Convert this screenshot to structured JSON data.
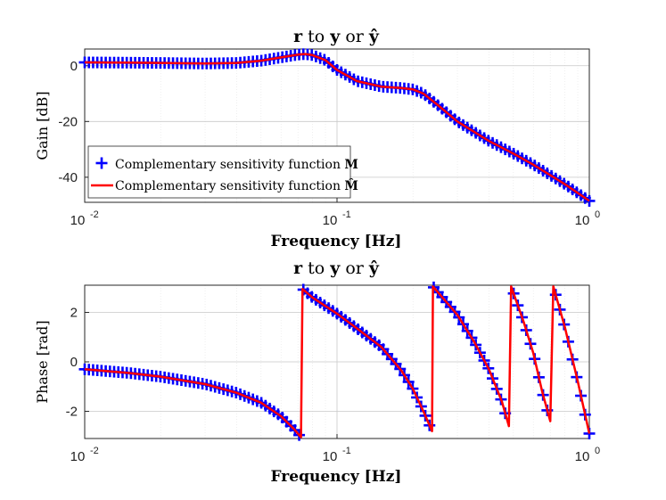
{
  "colors": {
    "marker": "#0000ff",
    "line": "#ff0000",
    "axis": "#262626"
  },
  "chart_data": [
    {
      "type": "line",
      "title_parts": [
        "r",
        " to ",
        "y",
        " or ",
        "ŷ"
      ],
      "xlabel_parts": [
        "Frequency",
        " ",
        "[Hz]"
      ],
      "ylabel": "Gain [dB]",
      "xscale": "log",
      "xlim": [
        0.01,
        1
      ],
      "ylim": [
        -49,
        6
      ],
      "xticks": [
        {
          "value": 0.01,
          "base": "10",
          "exp": "-2"
        },
        {
          "value": 0.1,
          "base": "10",
          "exp": "-1"
        },
        {
          "value": 1,
          "base": "10",
          "exp": "0"
        }
      ],
      "yticks": [
        {
          "value": 0,
          "label": "0"
        },
        {
          "value": -20,
          "label": "-20"
        },
        {
          "value": -40,
          "label": "-40"
        }
      ],
      "grid": true,
      "legend": {
        "position": "bottom-left",
        "entries": [
          {
            "label": "Complementary sensitivity function ",
            "symbol": "M",
            "marker": "plus",
            "color": "#0000ff"
          },
          {
            "label": "Complementary sensitivity function ",
            "symbol": "M̂",
            "marker": "line",
            "color": "#ff0000"
          }
        ]
      },
      "series": [
        {
          "name": "Complementary sensitivity function M",
          "style": "plus",
          "x": [
            0.01,
            0.015,
            0.02,
            0.03,
            0.04,
            0.05,
            0.06,
            0.07,
            0.075,
            0.08,
            0.09,
            0.1,
            0.12,
            0.15,
            0.18,
            0.2,
            0.22,
            0.25,
            0.3,
            0.4,
            0.5,
            0.6,
            0.8,
            1.0
          ],
          "y": [
            1.2,
            1.1,
            1.0,
            0.8,
            1.0,
            1.8,
            3.0,
            4.0,
            4.2,
            3.8,
            2.0,
            -1.5,
            -5.5,
            -7.5,
            -8.0,
            -8.5,
            -10.0,
            -14.0,
            -20.0,
            -27.0,
            -31.5,
            -35.5,
            -42.5,
            -48.5
          ],
          "n_markers": 121
        },
        {
          "name": "Complementary sensitivity function M̂",
          "style": "line",
          "x": [
            0.01,
            0.015,
            0.02,
            0.03,
            0.04,
            0.05,
            0.06,
            0.07,
            0.075,
            0.08,
            0.09,
            0.1,
            0.12,
            0.15,
            0.18,
            0.2,
            0.22,
            0.25,
            0.3,
            0.4,
            0.5,
            0.6,
            0.8,
            1.0
          ],
          "y": [
            1.2,
            1.1,
            1.0,
            0.8,
            1.0,
            1.8,
            3.0,
            4.0,
            4.2,
            3.8,
            2.0,
            -1.5,
            -5.5,
            -7.5,
            -8.0,
            -8.5,
            -10.0,
            -14.0,
            -20.0,
            -27.0,
            -31.5,
            -35.5,
            -42.5,
            -48.5
          ]
        }
      ]
    },
    {
      "type": "line",
      "title_parts": [
        "r",
        " to ",
        "y",
        " or ",
        "ŷ"
      ],
      "xlabel_parts": [
        "Frequency",
        " ",
        "[Hz]"
      ],
      "ylabel": "Phase [rad]",
      "xscale": "log",
      "xlim": [
        0.01,
        1
      ],
      "ylim": [
        -3.1,
        3.1
      ],
      "xticks": [
        {
          "value": 0.01,
          "base": "10",
          "exp": "-2"
        },
        {
          "value": 0.1,
          "base": "10",
          "exp": "-1"
        },
        {
          "value": 1,
          "base": "10",
          "exp": "0"
        }
      ],
      "yticks": [
        {
          "value": 2,
          "label": "2"
        },
        {
          "value": 0,
          "label": "0"
        },
        {
          "value": -2,
          "label": "-2"
        }
      ],
      "grid": true,
      "series": [
        {
          "name": "Complementary sensitivity function M",
          "style": "plus",
          "segments": [
            {
              "x": [
                0.01,
                0.015,
                0.02,
                0.03,
                0.04,
                0.05,
                0.06,
                0.068,
                0.072
              ],
              "y": [
                -0.3,
                -0.45,
                -0.6,
                -0.9,
                -1.25,
                -1.65,
                -2.2,
                -2.75,
                -3.05
              ]
            },
            {
              "x": [
                0.073,
                0.08,
                0.1,
                0.12,
                0.15,
                0.18,
                0.2,
                0.22,
                0.238
              ],
              "y": [
                2.95,
                2.6,
                1.95,
                1.35,
                0.6,
                -0.35,
                -1.1,
                -2.0,
                -2.8
              ]
            },
            {
              "x": [
                0.24,
                0.3,
                0.35,
                0.4,
                0.45,
                0.48
              ],
              "y": [
                3.05,
                1.9,
                0.8,
                -0.3,
                -1.6,
                -2.6
              ]
            },
            {
              "x": [
                0.49,
                0.55,
                0.6,
                0.65,
                0.7
              ],
              "y": [
                3.05,
                1.6,
                0.35,
                -1.2,
                -2.4
              ]
            },
            {
              "x": [
                0.72,
                0.8,
                0.9,
                1.0
              ],
              "y": [
                3.05,
                1.4,
                -0.8,
                -2.9
              ]
            }
          ],
          "n_markers": 121
        },
        {
          "name": "Complementary sensitivity function M̂",
          "style": "line",
          "segments": [
            {
              "x": [
                0.01,
                0.015,
                0.02,
                0.03,
                0.04,
                0.05,
                0.06,
                0.068,
                0.072
              ],
              "y": [
                -0.3,
                -0.45,
                -0.6,
                -0.9,
                -1.25,
                -1.65,
                -2.2,
                -2.75,
                -3.05
              ]
            },
            {
              "x": [
                0.073,
                0.08,
                0.1,
                0.12,
                0.15,
                0.18,
                0.2,
                0.22,
                0.238
              ],
              "y": [
                2.95,
                2.6,
                1.95,
                1.35,
                0.6,
                -0.35,
                -1.1,
                -2.0,
                -2.8
              ]
            },
            {
              "x": [
                0.24,
                0.3,
                0.35,
                0.4,
                0.45,
                0.48
              ],
              "y": [
                3.05,
                1.9,
                0.8,
                -0.3,
                -1.6,
                -2.6
              ]
            },
            {
              "x": [
                0.49,
                0.55,
                0.6,
                0.65,
                0.7
              ],
              "y": [
                3.05,
                1.6,
                0.35,
                -1.2,
                -2.4
              ]
            },
            {
              "x": [
                0.72,
                0.8,
                0.9,
                1.0
              ],
              "y": [
                3.05,
                1.4,
                -0.8,
                -2.9
              ]
            }
          ]
        }
      ]
    }
  ]
}
